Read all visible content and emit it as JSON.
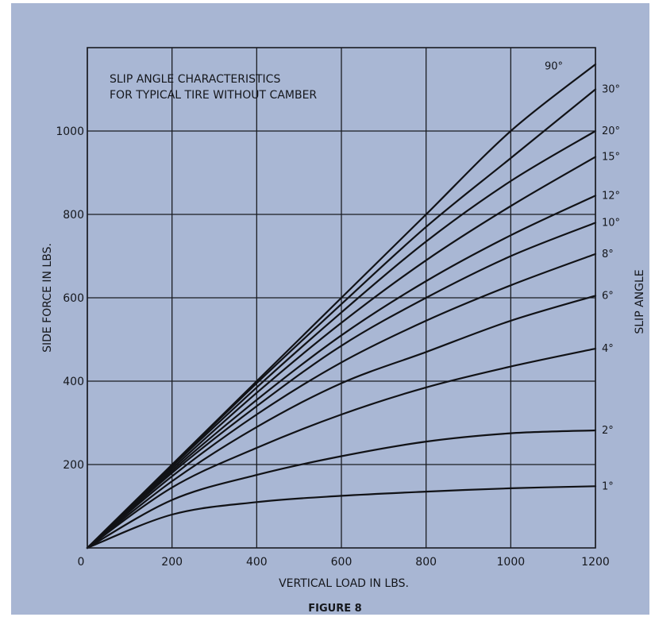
{
  "colors": {
    "page_background": "#ffffff",
    "panel": "#a8b6d3",
    "plot_background": "#a9b7d4",
    "grid": "#1a1c22",
    "curve": "#111216",
    "text": "#15171c"
  },
  "chart_data": {
    "type": "line",
    "title_lines": [
      "SLIP ANGLE CHARACTERISTICS",
      "FOR TYPICAL TIRE WITHOUT CAMBER"
    ],
    "xlabel": "VERTICAL LOAD IN LBS.",
    "ylabel": "SIDE FORCE IN LBS.",
    "right_axis_label": "SLIP ANGLE",
    "caption": "FIGURE 8",
    "xlim": [
      0,
      1200
    ],
    "ylim": [
      0,
      1200
    ],
    "x_ticks": [
      "0",
      "200",
      "400",
      "600",
      "800",
      "1000",
      "1200"
    ],
    "y_ticks": [
      "200",
      "400",
      "600",
      "800",
      "1000"
    ],
    "grid": true,
    "x": [
      0,
      200,
      400,
      600,
      800,
      1000,
      1200
    ],
    "series": [
      {
        "name": "1°",
        "values": [
          0,
          80,
          110,
          125,
          135,
          143,
          148
        ]
      },
      {
        "name": "2°",
        "values": [
          0,
          115,
          175,
          220,
          255,
          275,
          282
        ]
      },
      {
        "name": "4°",
        "values": [
          0,
          145,
          240,
          320,
          385,
          435,
          478
        ]
      },
      {
        "name": "6°",
        "values": [
          0,
          160,
          290,
          395,
          470,
          545,
          605
        ]
      },
      {
        "name": "8°",
        "values": [
          0,
          172,
          320,
          445,
          545,
          630,
          705
        ]
      },
      {
        "name": "10°",
        "values": [
          0,
          180,
          340,
          485,
          600,
          700,
          780
        ]
      },
      {
        "name": "12°",
        "values": [
          0,
          185,
          355,
          510,
          640,
          750,
          845
        ]
      },
      {
        "name": "15°",
        "values": [
          0,
          190,
          372,
          540,
          690,
          820,
          938
        ]
      },
      {
        "name": "20°",
        "values": [
          0,
          195,
          385,
          565,
          735,
          880,
          1000
        ]
      },
      {
        "name": "30°",
        "values": [
          0,
          198,
          395,
          585,
          770,
          935,
          1100
        ]
      },
      {
        "name": "90°",
        "values": [
          0,
          200,
          400,
          600,
          800,
          1000,
          1160
        ]
      }
    ]
  }
}
